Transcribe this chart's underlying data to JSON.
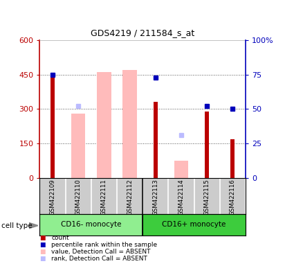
{
  "title": "GDS4219 / 211584_s_at",
  "samples": [
    "GSM422109",
    "GSM422110",
    "GSM422111",
    "GSM422112",
    "GSM422113",
    "GSM422114",
    "GSM422115",
    "GSM422116"
  ],
  "groups": [
    {
      "name": "CD16- monocyte",
      "indices": [
        0,
        1,
        2,
        3
      ],
      "color": "#90ee90"
    },
    {
      "name": "CD16+ monocyte",
      "indices": [
        4,
        5,
        6,
        7
      ],
      "color": "#3dcc3d"
    }
  ],
  "ylim_left": [
    0,
    600
  ],
  "ylim_right": [
    0,
    10
  ],
  "yticks_left": [
    0,
    150,
    300,
    450,
    600
  ],
  "ytick_labels_left": [
    "0",
    "150",
    "300",
    "450",
    "600"
  ],
  "yticks_right": [
    0,
    2.5,
    5,
    7.5,
    10
  ],
  "ytick_labels_right": [
    "0",
    "25",
    "50",
    "75",
    "100%"
  ],
  "count_values": [
    440,
    null,
    null,
    null,
    330,
    null,
    290,
    168
  ],
  "percentile_values_right": [
    7.5,
    null,
    null,
    null,
    7.3,
    null,
    5.2,
    5.0
  ],
  "absent_value_bars": [
    null,
    280,
    460,
    470,
    null,
    75,
    null,
    null
  ],
  "absent_rank_dots_right": [
    null,
    5.2,
    null,
    null,
    null,
    3.1,
    null,
    null
  ],
  "count_color": "#bb0000",
  "percentile_color": "#0000bb",
  "absent_value_color": "#ffbbbb",
  "absent_rank_color": "#bbbbff",
  "grid_color": "#555555",
  "bg_color": "#ffffff",
  "tick_area_color": "#cccccc",
  "absent_bar_width": 0.55,
  "count_bar_width": 0.15
}
